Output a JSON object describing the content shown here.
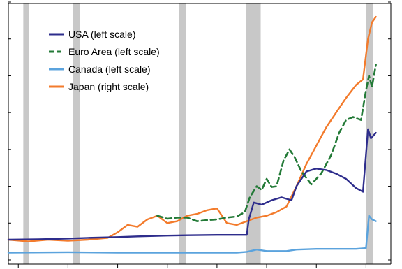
{
  "chart_data": {
    "type": "line",
    "title": "",
    "xlabel": "",
    "ylabel": "",
    "x_ticks": [
      1985,
      1990,
      1995,
      2000,
      2005,
      2010,
      2015,
      2020
    ],
    "xlim": [
      1984.0,
      2022.5
    ],
    "left_ylim": [
      0,
      7
    ],
    "right_ylim": [
      0,
      7
    ],
    "left_tick_values": [
      0,
      1,
      2,
      3,
      4,
      5,
      6,
      7
    ],
    "right_tick_values": [
      0,
      1,
      2,
      3,
      4,
      5,
      6,
      7
    ],
    "recessions": [
      [
        1985.5,
        1986.1
      ],
      [
        1990.5,
        1991.2
      ],
      [
        2001.2,
        2001.9
      ],
      [
        2007.9,
        2009.4
      ],
      [
        2020.0,
        2020.7
      ]
    ],
    "series": [
      {
        "name": "USA (left scale)",
        "axis": "left",
        "color": "#2e2d8c",
        "dash": "solid",
        "points": [
          [
            1984.0,
            0.55
          ],
          [
            1987.0,
            0.56
          ],
          [
            1990.0,
            0.58
          ],
          [
            1992.0,
            0.6
          ],
          [
            1995.0,
            0.62
          ],
          [
            1997.0,
            0.64
          ],
          [
            2000.0,
            0.66
          ],
          [
            2002.0,
            0.67
          ],
          [
            2005.0,
            0.68
          ],
          [
            2007.2,
            0.68
          ],
          [
            2008.0,
            0.68
          ],
          [
            2008.2,
            1.1
          ],
          [
            2008.7,
            1.56
          ],
          [
            2009.5,
            1.5
          ],
          [
            2010.5,
            1.62
          ],
          [
            2011.5,
            1.7
          ],
          [
            2012.5,
            1.62
          ],
          [
            2013.0,
            2.0
          ],
          [
            2014.0,
            2.4
          ],
          [
            2015.0,
            2.48
          ],
          [
            2016.0,
            2.44
          ],
          [
            2017.0,
            2.34
          ],
          [
            2018.0,
            2.2
          ],
          [
            2019.0,
            1.95
          ],
          [
            2019.7,
            1.85
          ],
          [
            2020.2,
            3.55
          ],
          [
            2020.5,
            3.3
          ],
          [
            2021.0,
            3.45
          ]
        ]
      },
      {
        "name": "Euro Area (left scale)",
        "axis": "left",
        "color": "#237a37",
        "dash": "dashed",
        "points": [
          [
            1999.0,
            1.2
          ],
          [
            2000.0,
            1.12
          ],
          [
            2001.0,
            1.15
          ],
          [
            2002.0,
            1.15
          ],
          [
            2003.0,
            1.05
          ],
          [
            2004.0,
            1.08
          ],
          [
            2005.0,
            1.1
          ],
          [
            2006.0,
            1.15
          ],
          [
            2007.0,
            1.18
          ],
          [
            2007.8,
            1.3
          ],
          [
            2008.3,
            1.7
          ],
          [
            2009.0,
            2.0
          ],
          [
            2009.5,
            1.9
          ],
          [
            2010.0,
            2.2
          ],
          [
            2010.5,
            1.98
          ],
          [
            2011.0,
            2.0
          ],
          [
            2011.7,
            2.7
          ],
          [
            2012.3,
            3.0
          ],
          [
            2012.8,
            2.8
          ],
          [
            2013.5,
            2.4
          ],
          [
            2014.5,
            2.05
          ],
          [
            2015.5,
            2.35
          ],
          [
            2016.5,
            2.85
          ],
          [
            2017.3,
            3.45
          ],
          [
            2018.0,
            3.8
          ],
          [
            2018.7,
            3.88
          ],
          [
            2019.5,
            3.8
          ],
          [
            2020.0,
            4.6
          ],
          [
            2020.3,
            5.0
          ],
          [
            2020.6,
            4.7
          ],
          [
            2021.0,
            5.3
          ]
        ]
      },
      {
        "name": "Canada (left scale)",
        "axis": "left",
        "color": "#5ba3dd",
        "dash": "solid",
        "points": [
          [
            1984.0,
            0.2
          ],
          [
            1990.0,
            0.21
          ],
          [
            1995.0,
            0.2
          ],
          [
            2000.0,
            0.2
          ],
          [
            2005.0,
            0.2
          ],
          [
            2007.0,
            0.2
          ],
          [
            2008.0,
            0.22
          ],
          [
            2009.0,
            0.28
          ],
          [
            2010.0,
            0.24
          ],
          [
            2012.0,
            0.24
          ],
          [
            2013.0,
            0.28
          ],
          [
            2015.0,
            0.3
          ],
          [
            2017.0,
            0.3
          ],
          [
            2019.0,
            0.3
          ],
          [
            2020.0,
            0.32
          ],
          [
            2020.3,
            1.2
          ],
          [
            2020.6,
            1.1
          ],
          [
            2021.0,
            1.05
          ]
        ]
      },
      {
        "name": "Japan (right scale)",
        "axis": "right",
        "color": "#f37b2c",
        "dash": "solid",
        "points": [
          [
            1984.0,
            0.55
          ],
          [
            1986.0,
            0.5
          ],
          [
            1988.0,
            0.55
          ],
          [
            1990.0,
            0.52
          ],
          [
            1992.0,
            0.55
          ],
          [
            1994.0,
            0.6
          ],
          [
            1995.0,
            0.75
          ],
          [
            1996.0,
            0.95
          ],
          [
            1997.0,
            0.9
          ],
          [
            1998.0,
            1.1
          ],
          [
            1999.0,
            1.2
          ],
          [
            2000.0,
            1.0
          ],
          [
            2001.0,
            1.05
          ],
          [
            2002.0,
            1.2
          ],
          [
            2003.0,
            1.25
          ],
          [
            2004.0,
            1.35
          ],
          [
            2005.0,
            1.4
          ],
          [
            2006.0,
            1.0
          ],
          [
            2007.0,
            0.95
          ],
          [
            2008.0,
            1.05
          ],
          [
            2009.0,
            1.15
          ],
          [
            2010.0,
            1.2
          ],
          [
            2011.0,
            1.3
          ],
          [
            2012.0,
            1.45
          ],
          [
            2013.0,
            2.0
          ],
          [
            2014.0,
            2.6
          ],
          [
            2015.0,
            3.1
          ],
          [
            2016.0,
            3.6
          ],
          [
            2017.0,
            4.0
          ],
          [
            2018.0,
            4.4
          ],
          [
            2019.0,
            4.75
          ],
          [
            2019.7,
            4.9
          ],
          [
            2020.2,
            6.0
          ],
          [
            2020.6,
            6.45
          ],
          [
            2021.0,
            6.6
          ]
        ]
      }
    ]
  },
  "legend": {
    "items": [
      {
        "label": "USA (left scale)",
        "color": "#2e2d8c"
      },
      {
        "label": "Euro Area (left scale)",
        "color": "#237a37"
      },
      {
        "label": "Canada (left scale)",
        "color": "#5ba3dd"
      },
      {
        "label": "Japan (right scale)",
        "color": "#f37b2c"
      }
    ]
  }
}
